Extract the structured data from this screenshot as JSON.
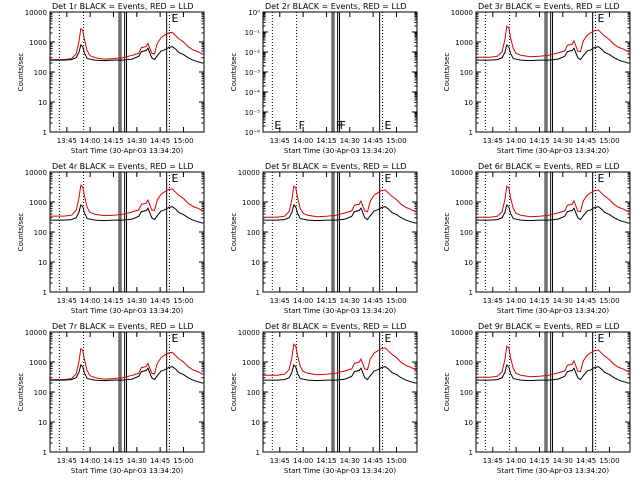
{
  "chart_data": [
    {
      "type": "line",
      "panel": "det1r",
      "title": "Det 1r BLACK = Events, RED = LLD",
      "ylabel": "Counts/sec",
      "xlabel": "Start Time (30-Apr-03 13:34:20)",
      "y_scale": "log",
      "ylim": [
        1,
        10000
      ],
      "y_ticks": [
        "1",
        "10",
        "100",
        "1000",
        "10000"
      ],
      "x_ticks": [
        "13:45",
        "14:00",
        "14:15",
        "14:30",
        "14:45",
        "15:00"
      ],
      "x_tick_hours": [
        13.75,
        14.0,
        14.25,
        14.5,
        14.75,
        15.0
      ],
      "xlim": [
        13.57,
        15.22
      ],
      "empty": false,
      "red_scale": 1.0,
      "markers": [
        {
          "x": 13.67,
          "style": "dotted",
          "label": ""
        },
        {
          "x": 13.93,
          "style": "dotted",
          "label": ""
        },
        {
          "x": 14.31,
          "style": "solid",
          "label": ""
        },
        {
          "x": 14.33,
          "style": "solid",
          "label": ""
        },
        {
          "x": 14.37,
          "style": "solid",
          "label": ""
        },
        {
          "x": 14.39,
          "style": "solid",
          "label": ""
        },
        {
          "x": 14.82,
          "style": "solid",
          "label": ""
        },
        {
          "x": 14.85,
          "style": "dotted",
          "label": "E"
        }
      ]
    },
    {
      "type": "line",
      "panel": "det2r",
      "title": "Det 2r BLACK = Events, RED = LLD",
      "ylabel": "Counts/sec",
      "xlabel": "Start Time (30-Apr-03 13:34:20)",
      "y_scale": "log",
      "ylim": [
        1e-06,
        1
      ],
      "y_ticks": [
        "10⁻⁶",
        "10⁻⁵",
        "10⁻⁴",
        "10⁻³",
        "10⁻²",
        "10⁻¹",
        "10⁰"
      ],
      "x_ticks": [
        "13:45",
        "14:00",
        "14:15",
        "14:30",
        "14:45",
        "15:00"
      ],
      "x_tick_hours": [
        13.75,
        14.0,
        14.25,
        14.5,
        14.75,
        15.0
      ],
      "xlim": [
        13.57,
        15.22
      ],
      "empty": true,
      "red_scale": 1.0,
      "markers": [
        {
          "x": 13.67,
          "style": "dotted",
          "label": "E"
        },
        {
          "x": 13.93,
          "style": "dotted",
          "label": "F"
        },
        {
          "x": 14.31,
          "style": "solid",
          "label": ""
        },
        {
          "x": 14.33,
          "style": "solid",
          "label": "F"
        },
        {
          "x": 14.37,
          "style": "solid",
          "label": "F"
        },
        {
          "x": 14.39,
          "style": "solid",
          "label": ""
        },
        {
          "x": 14.82,
          "style": "solid",
          "label": ""
        },
        {
          "x": 14.85,
          "style": "dotted",
          "label": "E"
        }
      ]
    },
    {
      "type": "line",
      "panel": "det3r",
      "title": "Det 3r BLACK = Events, RED = LLD",
      "ylabel": "Counts/sec",
      "xlabel": "Start Time (30-Apr-03 13:34:20)",
      "y_scale": "log",
      "ylim": [
        1,
        10000
      ],
      "y_ticks": [
        "1",
        "10",
        "100",
        "1000",
        "10000"
      ],
      "x_ticks": [
        "13:45",
        "14:00",
        "14:15",
        "14:30",
        "14:45",
        "15:00"
      ],
      "x_tick_hours": [
        13.75,
        14.0,
        14.25,
        14.5,
        14.75,
        15.0
      ],
      "xlim": [
        13.57,
        15.22
      ],
      "empty": false,
      "red_scale": 1.2,
      "markers": [
        {
          "x": 13.67,
          "style": "dotted",
          "label": ""
        },
        {
          "x": 13.93,
          "style": "dotted",
          "label": ""
        },
        {
          "x": 14.31,
          "style": "solid",
          "label": ""
        },
        {
          "x": 14.33,
          "style": "solid",
          "label": ""
        },
        {
          "x": 14.37,
          "style": "solid",
          "label": ""
        },
        {
          "x": 14.39,
          "style": "solid",
          "label": ""
        },
        {
          "x": 14.82,
          "style": "solid",
          "label": ""
        },
        {
          "x": 14.85,
          "style": "dotted",
          "label": "E"
        }
      ]
    },
    {
      "type": "line",
      "panel": "det4r",
      "title": "Det 4r BLACK = Events, RED = LLD",
      "ylabel": "Counts/sec",
      "xlabel": "Start Time (30-Apr-03 13:34:20)",
      "y_scale": "log",
      "ylim": [
        1,
        10000
      ],
      "y_ticks": [
        "1",
        "10",
        "100",
        "1000",
        "10000"
      ],
      "x_ticks": [
        "13:45",
        "14:00",
        "14:15",
        "14:30",
        "14:45",
        "15:00"
      ],
      "x_tick_hours": [
        13.75,
        14.0,
        14.25,
        14.5,
        14.75,
        15.0
      ],
      "xlim": [
        13.57,
        15.22
      ],
      "empty": false,
      "red_scale": 1.3,
      "markers": [
        {
          "x": 13.67,
          "style": "dotted",
          "label": ""
        },
        {
          "x": 13.93,
          "style": "dotted",
          "label": ""
        },
        {
          "x": 14.31,
          "style": "solid",
          "label": ""
        },
        {
          "x": 14.33,
          "style": "solid",
          "label": ""
        },
        {
          "x": 14.37,
          "style": "solid",
          "label": ""
        },
        {
          "x": 14.39,
          "style": "solid",
          "label": ""
        },
        {
          "x": 14.82,
          "style": "solid",
          "label": ""
        },
        {
          "x": 14.85,
          "style": "dotted",
          "label": "E"
        }
      ]
    },
    {
      "type": "line",
      "panel": "det5r",
      "title": "Det 5r BLACK = Events, RED = LLD",
      "ylabel": "Counts/sec",
      "xlabel": "Start Time (30-Apr-03 13:34:20)",
      "y_scale": "log",
      "ylim": [
        1,
        10000
      ],
      "y_ticks": [
        "1",
        "10",
        "100",
        "1000",
        "10000"
      ],
      "x_ticks": [
        "13:45",
        "14:00",
        "14:15",
        "14:30",
        "14:45",
        "15:00"
      ],
      "x_tick_hours": [
        13.75,
        14.0,
        14.25,
        14.5,
        14.75,
        15.0
      ],
      "xlim": [
        13.57,
        15.22
      ],
      "empty": false,
      "red_scale": 1.2,
      "markers": [
        {
          "x": 13.67,
          "style": "dotted",
          "label": ""
        },
        {
          "x": 13.93,
          "style": "dotted",
          "label": ""
        },
        {
          "x": 14.31,
          "style": "solid",
          "label": ""
        },
        {
          "x": 14.33,
          "style": "solid",
          "label": ""
        },
        {
          "x": 14.37,
          "style": "solid",
          "label": ""
        },
        {
          "x": 14.39,
          "style": "solid",
          "label": ""
        },
        {
          "x": 14.82,
          "style": "solid",
          "label": ""
        },
        {
          "x": 14.85,
          "style": "dotted",
          "label": "E"
        }
      ]
    },
    {
      "type": "line",
      "panel": "det6r",
      "title": "Det 6r BLACK = Events, RED = LLD",
      "ylabel": "Counts/sec",
      "xlabel": "Start Time (30-Apr-03 13:34:20)",
      "y_scale": "log",
      "ylim": [
        1,
        10000
      ],
      "y_ticks": [
        "1",
        "10",
        "100",
        "1000",
        "10000"
      ],
      "x_ticks": [
        "13:45",
        "14:00",
        "14:15",
        "14:30",
        "14:45",
        "15:00"
      ],
      "x_tick_hours": [
        13.75,
        14.0,
        14.25,
        14.5,
        14.75,
        15.0
      ],
      "xlim": [
        13.57,
        15.22
      ],
      "empty": false,
      "red_scale": 1.2,
      "markers": [
        {
          "x": 13.67,
          "style": "dotted",
          "label": ""
        },
        {
          "x": 13.93,
          "style": "dotted",
          "label": ""
        },
        {
          "x": 14.31,
          "style": "solid",
          "label": ""
        },
        {
          "x": 14.33,
          "style": "solid",
          "label": ""
        },
        {
          "x": 14.37,
          "style": "solid",
          "label": ""
        },
        {
          "x": 14.39,
          "style": "solid",
          "label": ""
        },
        {
          "x": 14.82,
          "style": "solid",
          "label": ""
        },
        {
          "x": 14.85,
          "style": "dotted",
          "label": "E"
        }
      ]
    },
    {
      "type": "line",
      "panel": "det7r",
      "title": "Det 7r BLACK = Events, RED = LLD",
      "ylabel": "Counts/sec",
      "xlabel": "Start Time (30-Apr-03 13:34:20)",
      "y_scale": "log",
      "ylim": [
        1,
        10000
      ],
      "y_ticks": [
        "1",
        "10",
        "100",
        "1000",
        "10000"
      ],
      "x_ticks": [
        "13:45",
        "14:00",
        "14:15",
        "14:30",
        "14:45",
        "15:00"
      ],
      "x_tick_hours": [
        13.75,
        14.0,
        14.25,
        14.5,
        14.75,
        15.0
      ],
      "xlim": [
        13.57,
        15.22
      ],
      "empty": false,
      "red_scale": 1.0,
      "markers": [
        {
          "x": 13.67,
          "style": "dotted",
          "label": ""
        },
        {
          "x": 13.93,
          "style": "dotted",
          "label": ""
        },
        {
          "x": 14.31,
          "style": "solid",
          "label": ""
        },
        {
          "x": 14.33,
          "style": "solid",
          "label": ""
        },
        {
          "x": 14.37,
          "style": "solid",
          "label": ""
        },
        {
          "x": 14.39,
          "style": "solid",
          "label": ""
        },
        {
          "x": 14.82,
          "style": "solid",
          "label": ""
        },
        {
          "x": 14.85,
          "style": "dotted",
          "label": "E"
        }
      ]
    },
    {
      "type": "line",
      "panel": "det8r",
      "title": "Det 8r BLACK = Events, RED = LLD",
      "ylabel": "Counts/sec",
      "xlabel": "Start Time (30-Apr-03 13:34:20)",
      "y_scale": "log",
      "ylim": [
        1,
        10000
      ],
      "y_ticks": [
        "1",
        "10",
        "100",
        "1000",
        "10000"
      ],
      "x_ticks": [
        "13:45",
        "14:00",
        "14:15",
        "14:30",
        "14:45",
        "15:00"
      ],
      "x_tick_hours": [
        13.75,
        14.0,
        14.25,
        14.5,
        14.75,
        15.0
      ],
      "xlim": [
        13.57,
        15.22
      ],
      "empty": false,
      "red_scale": 1.4,
      "markers": [
        {
          "x": 13.67,
          "style": "dotted",
          "label": ""
        },
        {
          "x": 13.93,
          "style": "dotted",
          "label": ""
        },
        {
          "x": 14.31,
          "style": "solid",
          "label": ""
        },
        {
          "x": 14.33,
          "style": "solid",
          "label": ""
        },
        {
          "x": 14.37,
          "style": "solid",
          "label": ""
        },
        {
          "x": 14.39,
          "style": "solid",
          "label": ""
        },
        {
          "x": 14.82,
          "style": "solid",
          "label": ""
        },
        {
          "x": 14.85,
          "style": "dotted",
          "label": "E"
        }
      ]
    },
    {
      "type": "line",
      "panel": "det9r",
      "title": "Det 9r BLACK = Events, RED = LLD",
      "ylabel": "Counts/sec",
      "xlabel": "Start Time (30-Apr-03 13:34:20)",
      "y_scale": "log",
      "ylim": [
        1,
        10000
      ],
      "y_ticks": [
        "1",
        "10",
        "100",
        "1000",
        "10000"
      ],
      "x_ticks": [
        "13:45",
        "14:00",
        "14:15",
        "14:30",
        "14:45",
        "15:00"
      ],
      "x_tick_hours": [
        13.75,
        14.0,
        14.25,
        14.5,
        14.75,
        15.0
      ],
      "xlim": [
        13.57,
        15.22
      ],
      "empty": false,
      "red_scale": 1.2,
      "markers": [
        {
          "x": 13.67,
          "style": "dotted",
          "label": ""
        },
        {
          "x": 13.93,
          "style": "dotted",
          "label": ""
        },
        {
          "x": 14.31,
          "style": "solid",
          "label": ""
        },
        {
          "x": 14.33,
          "style": "solid",
          "label": ""
        },
        {
          "x": 14.37,
          "style": "solid",
          "label": ""
        },
        {
          "x": 14.39,
          "style": "solid",
          "label": ""
        },
        {
          "x": 14.82,
          "style": "solid",
          "label": ""
        },
        {
          "x": 14.85,
          "style": "dotted",
          "label": "E"
        }
      ]
    }
  ],
  "series_profile": {
    "events": [
      [
        13.57,
        250
      ],
      [
        13.67,
        250
      ],
      [
        13.72,
        250
      ],
      [
        13.8,
        260
      ],
      [
        13.85,
        300
      ],
      [
        13.88,
        450
      ],
      [
        13.9,
        800
      ],
      [
        13.92,
        700
      ],
      [
        13.94,
        420
      ],
      [
        13.97,
        280
      ],
      [
        14.05,
        250
      ],
      [
        14.15,
        240
      ],
      [
        14.25,
        250
      ],
      [
        14.35,
        250
      ],
      [
        14.45,
        270
      ],
      [
        14.52,
        330
      ],
      [
        14.55,
        480
      ],
      [
        14.6,
        520
      ],
      [
        14.62,
        620
      ],
      [
        14.66,
        300
      ],
      [
        14.69,
        260
      ],
      [
        14.72,
        350
      ],
      [
        14.76,
        500
      ],
      [
        14.8,
        550
      ],
      [
        14.84,
        650
      ],
      [
        14.88,
        700
      ],
      [
        14.91,
        600
      ],
      [
        14.95,
        450
      ],
      [
        15.0,
        380
      ],
      [
        15.05,
        300
      ],
      [
        15.1,
        250
      ],
      [
        15.15,
        220
      ],
      [
        15.2,
        200
      ],
      [
        15.22,
        200
      ]
    ],
    "lld": [
      [
        13.57,
        260
      ],
      [
        13.67,
        260
      ],
      [
        13.72,
        260
      ],
      [
        13.8,
        280
      ],
      [
        13.85,
        400
      ],
      [
        13.88,
        1000
      ],
      [
        13.9,
        2800
      ],
      [
        13.92,
        2500
      ],
      [
        13.94,
        1200
      ],
      [
        13.97,
        500
      ],
      [
        14.0,
        350
      ],
      [
        14.05,
        300
      ],
      [
        14.15,
        270
      ],
      [
        14.25,
        280
      ],
      [
        14.35,
        300
      ],
      [
        14.45,
        360
      ],
      [
        14.52,
        420
      ],
      [
        14.55,
        650
      ],
      [
        14.6,
        700
      ],
      [
        14.62,
        900
      ],
      [
        14.66,
        420
      ],
      [
        14.69,
        400
      ],
      [
        14.72,
        900
      ],
      [
        14.76,
        1400
      ],
      [
        14.8,
        1700
      ],
      [
        14.84,
        2000
      ],
      [
        14.88,
        2100
      ],
      [
        14.91,
        1700
      ],
      [
        14.95,
        1300
      ],
      [
        15.0,
        1000
      ],
      [
        15.05,
        700
      ],
      [
        15.1,
        550
      ],
      [
        15.15,
        480
      ],
      [
        15.2,
        400
      ],
      [
        15.22,
        400
      ]
    ]
  },
  "colors": {
    "events": "#000000",
    "lld": "#dd0000",
    "axes": "#000000"
  }
}
